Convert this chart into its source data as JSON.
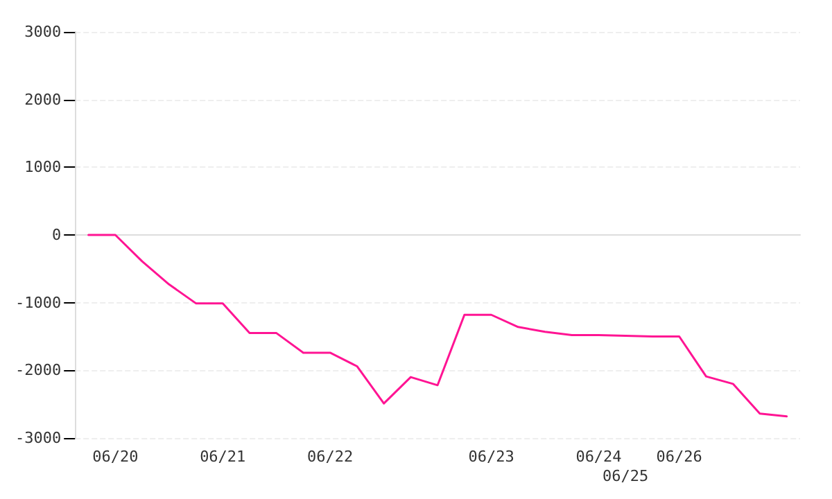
{
  "chart_data": {
    "type": "line",
    "categories": [
      null,
      "06/20",
      null,
      null,
      null,
      "06/21",
      null,
      null,
      null,
      "06/22",
      null,
      null,
      null,
      null,
      null,
      "06/23",
      null,
      null,
      null,
      "06/24",
      "06/25",
      null,
      "06/26",
      null,
      null,
      null,
      null
    ],
    "series": [
      {
        "color": "#ff1493",
        "values": [
          0,
          0,
          -390,
          -730,
          -1010,
          -1010,
          -1450,
          -1450,
          -1740,
          -1740,
          -1940,
          -2490,
          -2100,
          -2220,
          -1180,
          -1180,
          -1360,
          -1430,
          -1480,
          -1480,
          -1490,
          -1500,
          -1500,
          -2090,
          -2200,
          -2640,
          -2680
        ]
      }
    ],
    "ylim": [
      -3000,
      3000
    ],
    "yticks": [
      -3000,
      -2000,
      -1000,
      0,
      1000,
      2000,
      3000
    ],
    "grid": "y",
    "marker": "none",
    "line_style": "solid"
  }
}
